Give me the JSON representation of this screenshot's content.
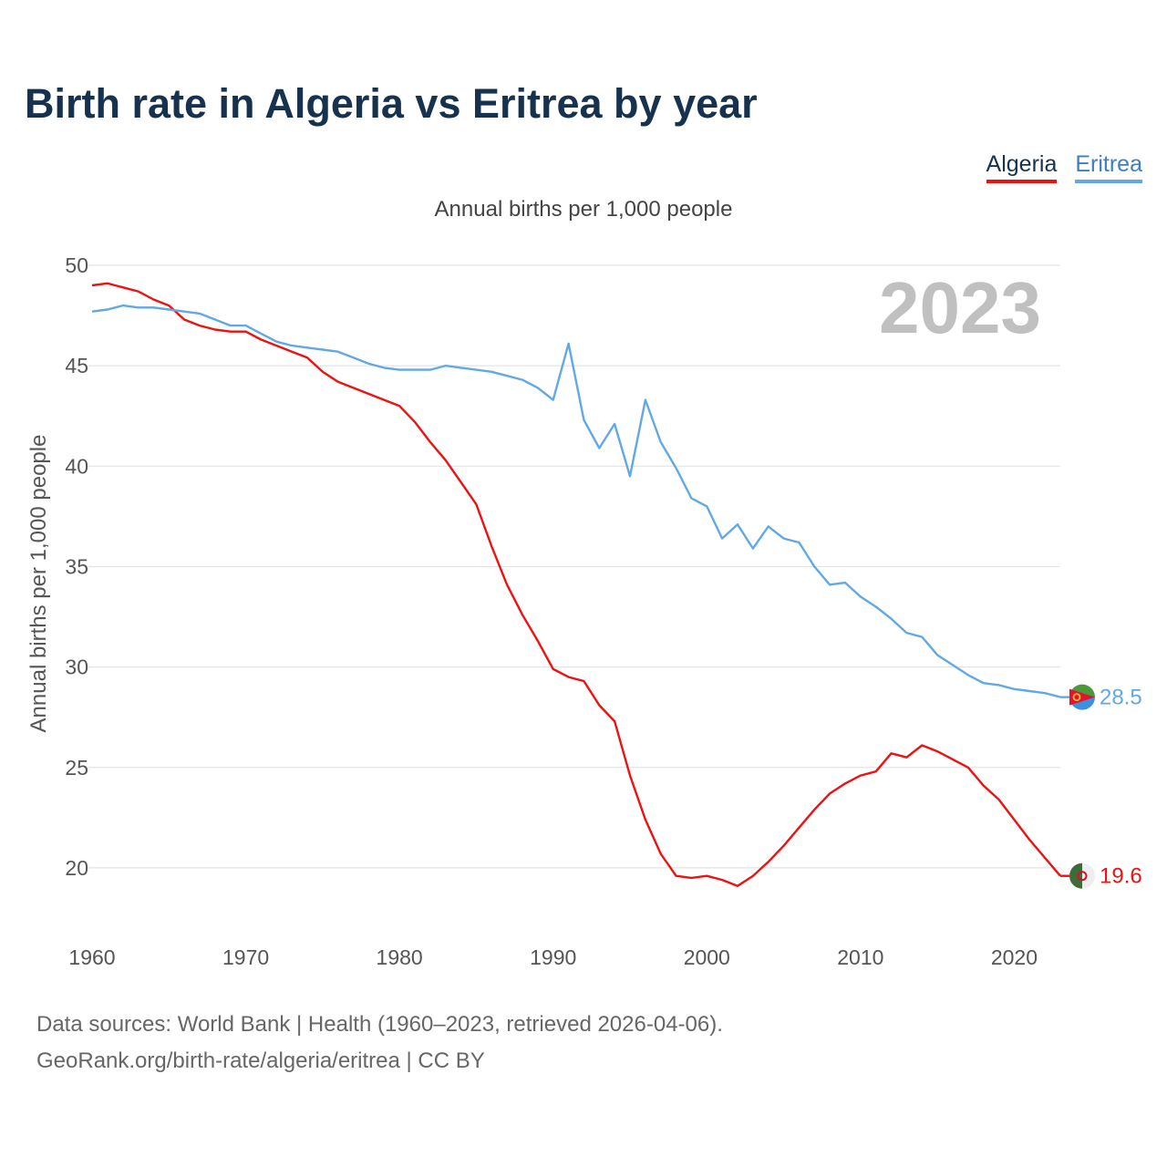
{
  "chart_data": {
    "type": "line",
    "title": "Birth rate in Algeria vs Eritrea by year",
    "subtitle": "Annual births per 1,000 people",
    "ylabel": "Annual births per 1,000 people",
    "xlabel": "",
    "year_label": "2023",
    "xlim": [
      1960,
      2023
    ],
    "ylim": [
      17,
      50
    ],
    "yticks": [
      20,
      25,
      30,
      35,
      40,
      45,
      50
    ],
    "xticks": [
      1960,
      1970,
      1980,
      1990,
      2000,
      2010,
      2020
    ],
    "grid": true,
    "legend_position": "top-right",
    "x": [
      1960,
      1961,
      1962,
      1963,
      1964,
      1965,
      1966,
      1967,
      1968,
      1969,
      1970,
      1971,
      1972,
      1973,
      1974,
      1975,
      1976,
      1977,
      1978,
      1979,
      1980,
      1981,
      1982,
      1983,
      1984,
      1985,
      1986,
      1987,
      1988,
      1989,
      1990,
      1991,
      1992,
      1993,
      1994,
      1995,
      1996,
      1997,
      1998,
      1999,
      2000,
      2001,
      2002,
      2003,
      2004,
      2005,
      2006,
      2007,
      2008,
      2009,
      2010,
      2011,
      2012,
      2013,
      2014,
      2015,
      2016,
      2017,
      2018,
      2019,
      2020,
      2021,
      2022,
      2023
    ],
    "series": [
      {
        "name": "Algeria",
        "color": "#ee1111",
        "end_label": "19.6",
        "values": [
          49.0,
          49.1,
          48.9,
          48.7,
          48.3,
          48.0,
          47.3,
          47.0,
          46.8,
          46.7,
          46.7,
          46.3,
          46.0,
          45.7,
          45.4,
          44.7,
          44.2,
          43.9,
          43.6,
          43.3,
          43.0,
          42.2,
          41.2,
          40.3,
          39.2,
          38.1,
          36.0,
          34.1,
          32.6,
          31.3,
          29.9,
          29.5,
          29.3,
          28.1,
          27.3,
          24.6,
          22.4,
          20.7,
          19.6,
          19.5,
          19.6,
          19.4,
          19.1,
          19.6,
          20.3,
          21.1,
          22.0,
          22.9,
          23.7,
          24.2,
          24.6,
          24.8,
          25.7,
          25.5,
          26.1,
          25.8,
          25.4,
          25.0,
          24.1,
          23.4,
          22.4,
          21.4,
          20.5,
          19.6
        ]
      },
      {
        "name": "Eritrea",
        "color": "#62a8e5",
        "end_label": "28.5",
        "values": [
          47.7,
          47.8,
          48.0,
          47.9,
          47.9,
          47.8,
          47.7,
          47.6,
          47.3,
          47.0,
          47.0,
          46.6,
          46.2,
          46.0,
          45.9,
          45.8,
          45.7,
          45.4,
          45.1,
          44.9,
          44.8,
          44.8,
          44.8,
          45.0,
          44.9,
          44.8,
          44.7,
          44.5,
          44.3,
          43.9,
          43.3,
          46.1,
          42.3,
          40.9,
          42.1,
          39.5,
          43.3,
          41.2,
          39.9,
          38.4,
          38.0,
          36.4,
          37.1,
          35.9,
          37.0,
          36.4,
          36.2,
          35.0,
          34.1,
          34.2,
          33.5,
          33.0,
          32.4,
          31.7,
          31.5,
          30.6,
          30.1,
          29.6,
          29.2,
          29.1,
          28.9,
          28.8,
          28.7,
          28.5
        ]
      }
    ]
  },
  "footer": {
    "line1": "Data sources: World Bank | Health (1960–2023, retrieved 2026-04-06).",
    "line2": "GeoRank.org/birth-rate/algeria/eritrea | CC BY"
  }
}
